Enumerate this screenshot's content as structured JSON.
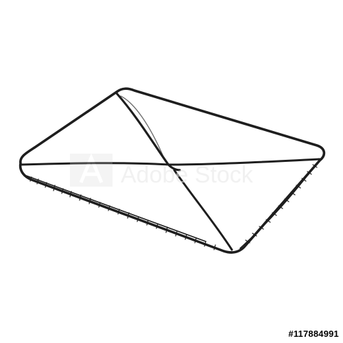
{
  "image": {
    "subject": "envelope-sketch",
    "watermark": "Adobe Stock",
    "stock_id": "#117884991",
    "colors": {
      "stroke": "#1e1e1e",
      "background": "#ffffff",
      "watermark": "#e6e6e6"
    }
  }
}
